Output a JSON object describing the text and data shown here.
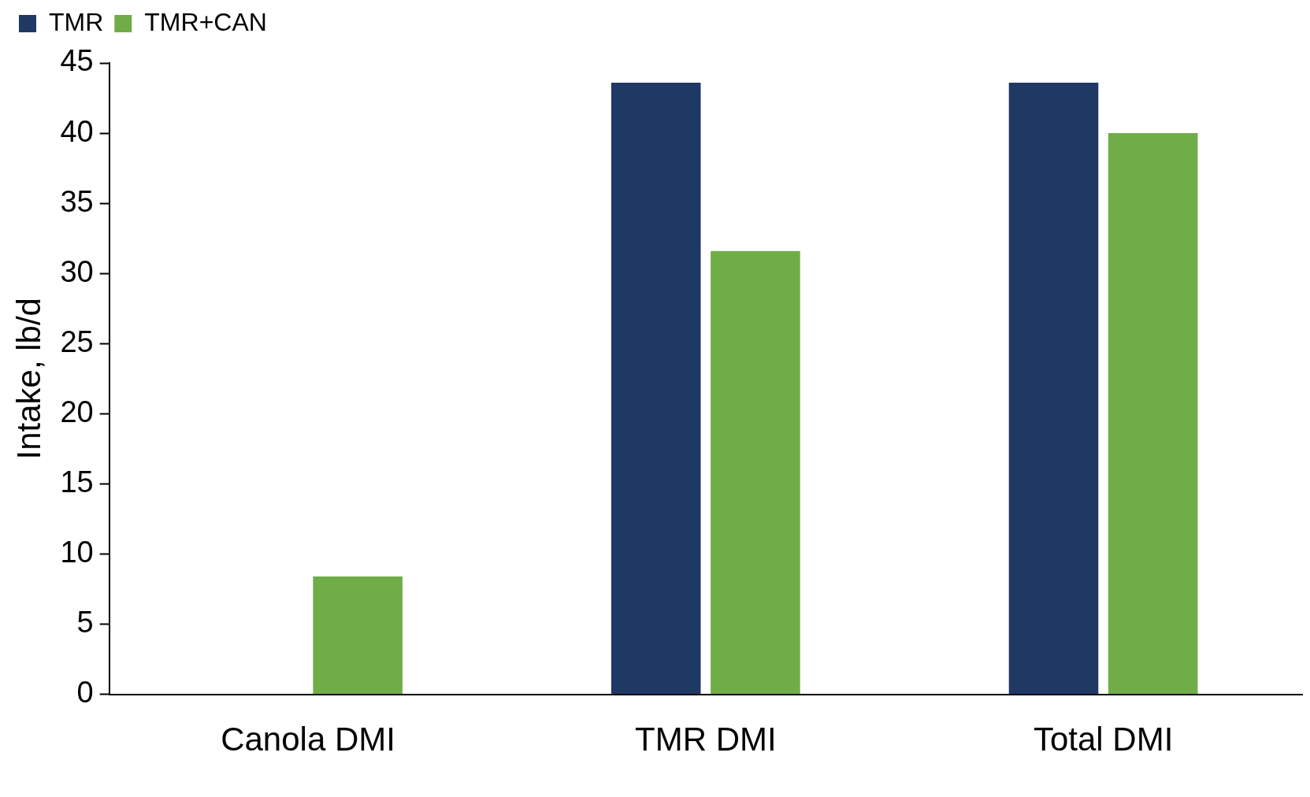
{
  "chart_data": {
    "type": "bar",
    "ylabel": "Intake, lb/d",
    "categories": [
      "Canola DMI",
      "TMR DMI",
      "Total DMI"
    ],
    "series": [
      {
        "name": "TMR",
        "color": "#203864",
        "values": [
          null,
          43.6,
          43.6
        ]
      },
      {
        "name": "TMR+CAN",
        "color": "#70ad47",
        "values": [
          8.4,
          31.6,
          40.0
        ]
      }
    ],
    "ylim": [
      0,
      45
    ],
    "yticks": [
      0,
      5,
      10,
      15,
      20,
      25,
      30,
      35,
      40,
      45
    ],
    "grid": false,
    "legend": "top left"
  }
}
